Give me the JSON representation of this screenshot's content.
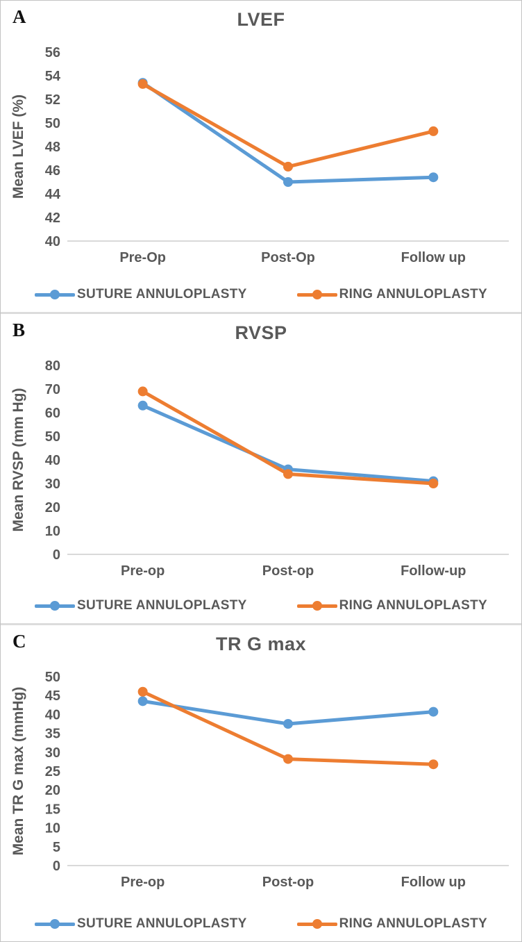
{
  "figure": {
    "text_color": "#595959",
    "axis_line_color": "#d9d9d9",
    "panel_border_color": "#c3c3c3",
    "panels": [
      {
        "letter": "A"
      },
      {
        "letter": "B"
      },
      {
        "letter": "C"
      }
    ]
  },
  "chart_data": [
    {
      "type": "line",
      "title": "LVEF",
      "ylabel": "Mean LVEF (%)",
      "categories": [
        "Pre-Op",
        "Post-Op",
        "Follow up"
      ],
      "series": [
        {
          "name": "SUTURE ANNULOPLASTY",
          "color": "#5B9BD5",
          "values": [
            53.4,
            45.0,
            45.4
          ]
        },
        {
          "name": "RING ANNULOPLASTY",
          "color": "#ED7D31",
          "values": [
            53.3,
            46.3,
            49.3
          ]
        }
      ],
      "ylim": [
        40,
        56
      ],
      "ytick_step": 2,
      "grid": false,
      "legend_position": "bottom"
    },
    {
      "type": "line",
      "title": "RVSP",
      "ylabel": "Mean RVSP (mm Hg)",
      "categories": [
        "Pre-op",
        "Post-op",
        "Follow-up"
      ],
      "series": [
        {
          "name": "SUTURE ANNULOPLASTY",
          "color": "#5B9BD5",
          "values": [
            63,
            36,
            31
          ]
        },
        {
          "name": "RING ANNULOPLASTY",
          "color": "#ED7D31",
          "values": [
            69,
            34,
            30
          ]
        }
      ],
      "ylim": [
        0,
        80
      ],
      "ytick_step": 10,
      "grid": false,
      "legend_position": "bottom"
    },
    {
      "type": "line",
      "title": "TR G max",
      "ylabel": "Mean TR G max (mmHg)",
      "categories": [
        "Pre-op",
        "Post-op",
        "Follow up"
      ],
      "series": [
        {
          "name": "SUTURE ANNULOPLASTY",
          "color": "#5B9BD5",
          "values": [
            43.5,
            37.5,
            40.7
          ]
        },
        {
          "name": "RING ANNULOPLASTY",
          "color": "#ED7D31",
          "values": [
            46,
            28.2,
            26.8
          ]
        }
      ],
      "ylim": [
        0,
        50
      ],
      "ytick_step": 5,
      "grid": false,
      "legend_position": "bottom"
    }
  ]
}
